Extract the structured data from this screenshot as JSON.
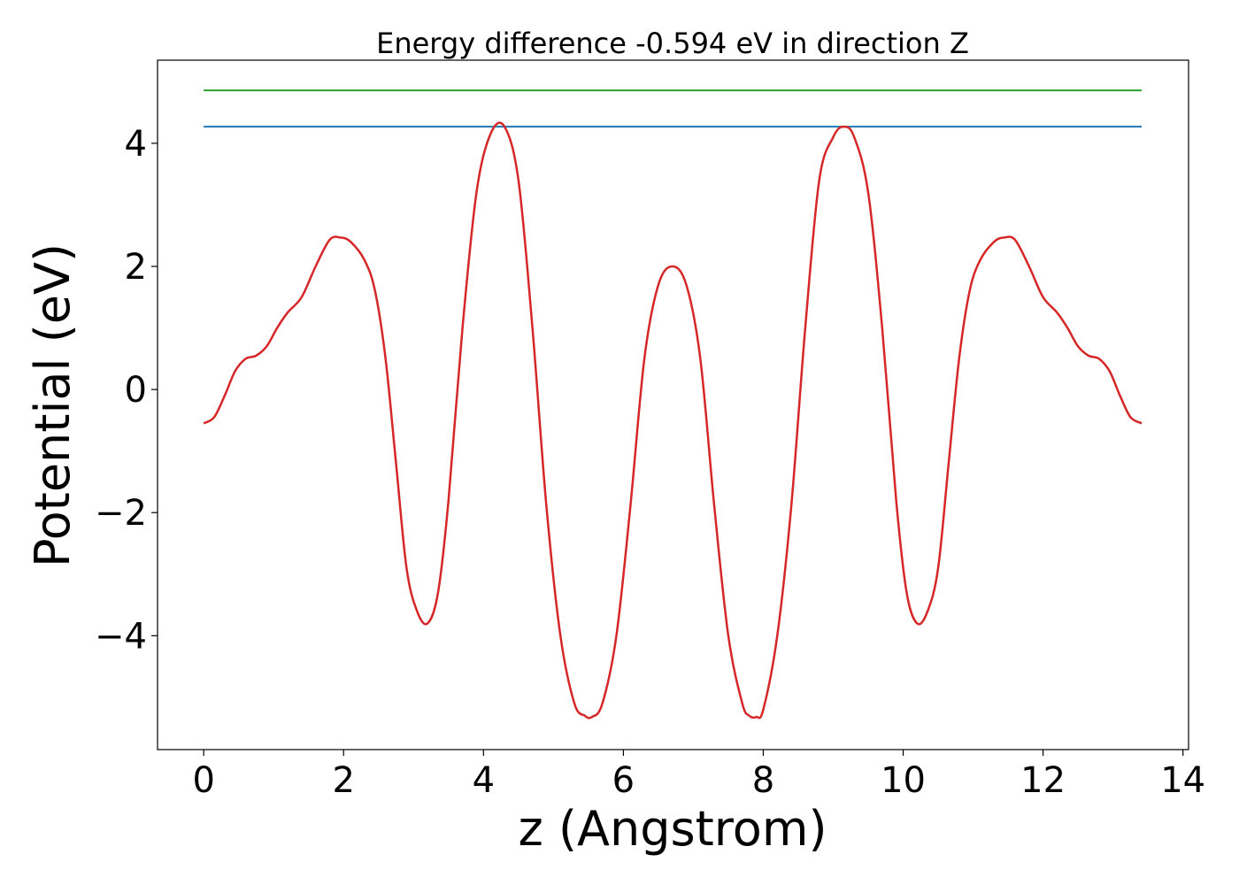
{
  "chart_data": {
    "type": "line",
    "title": "Energy difference -0.594 eV in direction Z",
    "xlabel": "z (Angstrom)",
    "ylabel": "Potential (eV)",
    "xlim": [
      -0.66,
      14.08
    ],
    "ylim": [
      -5.85,
      5.35
    ],
    "xticks": [
      0,
      2,
      4,
      6,
      8,
      10,
      12,
      14
    ],
    "xtick_labels": [
      "0",
      "2",
      "4",
      "6",
      "8",
      "10",
      "12",
      "14"
    ],
    "yticks": [
      -4,
      -2,
      0,
      2,
      4
    ],
    "ytick_labels": [
      "−4",
      "−2",
      "0",
      "2",
      "4"
    ],
    "grid": false,
    "series": [
      {
        "color": "#2ca02c",
        "x": [
          0,
          13.41
        ],
        "y": [
          4.86,
          4.86
        ]
      },
      {
        "color": "#1f77b4",
        "x": [
          0,
          13.41
        ],
        "y": [
          4.27,
          4.27
        ]
      },
      {
        "color": "#d62728",
        "x": [
          0,
          0.15,
          0.3,
          0.45,
          0.6,
          0.75,
          0.9,
          1.05,
          1.2,
          1.4,
          1.6,
          1.8,
          1.95,
          2.1,
          2.3,
          2.45,
          2.6,
          2.75,
          2.9,
          3.05,
          3.2,
          3.35,
          3.5,
          3.7,
          3.9,
          4.1,
          4.3,
          4.5,
          4.7,
          4.9,
          5.1,
          5.3,
          5.45,
          5.55,
          5.7,
          5.9,
          6.1,
          6.3,
          6.5,
          6.7,
          6.9,
          7.1,
          7.3,
          7.5,
          7.7,
          7.8,
          7.9,
          8.0,
          8.2,
          8.4,
          8.6,
          8.8,
          9.0,
          9.15,
          9.3,
          9.5,
          9.7,
          9.9,
          10.05,
          10.2,
          10.35,
          10.5,
          10.65,
          10.8,
          10.95,
          11.1,
          11.3,
          11.45,
          11.6,
          11.8,
          12.0,
          12.2,
          12.35,
          12.5,
          12.65,
          12.8,
          12.95,
          13.1,
          13.25,
          13.41
        ],
        "y": [
          -0.55,
          -0.45,
          -0.1,
          0.3,
          0.5,
          0.55,
          0.7,
          1.0,
          1.25,
          1.5,
          2.0,
          2.43,
          2.47,
          2.4,
          2.1,
          1.6,
          0.5,
          -1.2,
          -2.9,
          -3.6,
          -3.8,
          -3.3,
          -1.8,
          1.0,
          3.2,
          4.15,
          4.27,
          3.4,
          1.0,
          -1.9,
          -4.0,
          -5.1,
          -5.3,
          -5.32,
          -5.1,
          -4.0,
          -1.9,
          0.5,
          1.7,
          2.0,
          1.7,
          0.5,
          -1.9,
          -4.0,
          -5.1,
          -5.3,
          -5.32,
          -5.2,
          -4.0,
          -1.9,
          1.0,
          3.4,
          4.1,
          4.27,
          4.1,
          3.2,
          1.0,
          -1.8,
          -3.3,
          -3.8,
          -3.6,
          -2.9,
          -1.2,
          0.5,
          1.6,
          2.1,
          2.4,
          2.47,
          2.43,
          2.0,
          1.5,
          1.25,
          1.0,
          0.7,
          0.55,
          0.5,
          0.3,
          -0.1,
          -0.45,
          -0.55
        ]
      }
    ]
  }
}
